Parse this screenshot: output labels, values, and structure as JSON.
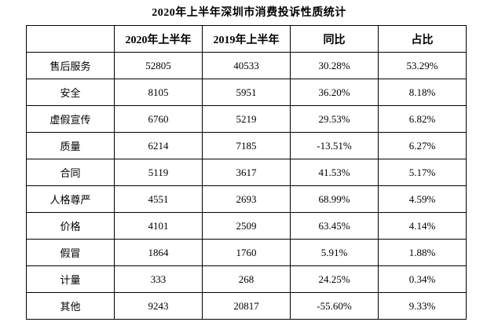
{
  "title": "2020年上半年深圳市消费投诉性质统计",
  "table": {
    "columns": [
      "",
      "2020年上半年",
      "2019年上半年",
      "同比",
      "占比"
    ],
    "rows": [
      {
        "cells": [
          "售后服务",
          "52805",
          "40533",
          "30.28%",
          "53.29%"
        ]
      },
      {
        "cells": [
          "安全",
          "8105",
          "5951",
          "36.20%",
          "8.18%"
        ]
      },
      {
        "cells": [
          "虚假宣传",
          "6760",
          "5219",
          "29.53%",
          "6.82%"
        ]
      },
      {
        "cells": [
          "质量",
          "6214",
          "7185",
          "-13.51%",
          "6.27%"
        ]
      },
      {
        "cells": [
          "合同",
          "5119",
          "3617",
          "41.53%",
          "5.17%"
        ]
      },
      {
        "cells": [
          "人格尊严",
          "4551",
          "2693",
          "68.99%",
          "4.59%"
        ]
      },
      {
        "cells": [
          "价格",
          "4101",
          "2509",
          "63.45%",
          "4.14%"
        ]
      },
      {
        "cells": [
          "假冒",
          "1864",
          "1760",
          "5.91%",
          "1.88%"
        ]
      },
      {
        "cells": [
          "计量",
          "333",
          "268",
          "24.25%",
          "0.34%"
        ]
      },
      {
        "cells": [
          "其他",
          "9243",
          "20817",
          "-55.60%",
          "9.33%"
        ]
      }
    ]
  },
  "chart_data": {
    "type": "table",
    "title": "2020年上半年深圳市消费投诉性质统计",
    "columns": [
      "",
      "2020年上半年",
      "2019年上半年",
      "同比",
      "占比"
    ],
    "categories": [
      "售后服务",
      "安全",
      "虚假宣传",
      "质量",
      "合同",
      "人格尊严",
      "价格",
      "假冒",
      "计量",
      "其他"
    ],
    "series": [
      {
        "name": "2020年上半年",
        "values": [
          52805,
          8105,
          6760,
          6214,
          5119,
          4551,
          4101,
          1864,
          333,
          9243
        ]
      },
      {
        "name": "2019年上半年",
        "values": [
          40533,
          5951,
          5219,
          7185,
          3617,
          2693,
          2509,
          1760,
          268,
          20817
        ]
      },
      {
        "name": "同比",
        "values": [
          "30.28%",
          "36.20%",
          "29.53%",
          "-13.51%",
          "41.53%",
          "68.99%",
          "63.45%",
          "5.91%",
          "24.25%",
          "-55.60%"
        ]
      },
      {
        "name": "占比",
        "values": [
          "53.29%",
          "8.18%",
          "6.82%",
          "6.27%",
          "5.17%",
          "4.59%",
          "4.14%",
          "1.88%",
          "0.34%",
          "9.33%"
        ]
      }
    ]
  },
  "colors": {
    "background": "#ffffff",
    "border": "#000000",
    "text": "#000000"
  }
}
